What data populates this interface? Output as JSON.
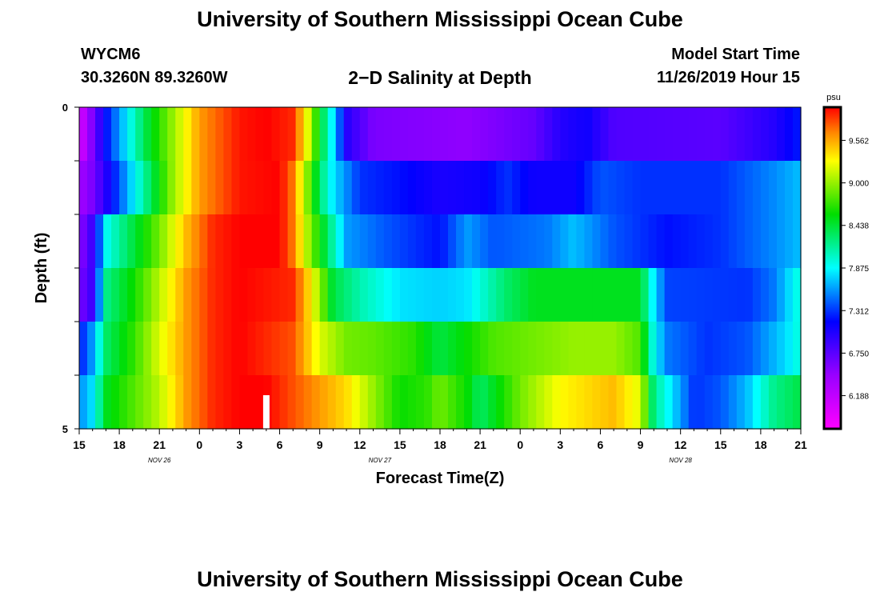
{
  "header": {
    "title": "University of Southern Mississippi Ocean Cube",
    "station": "WYCM6",
    "coords": "30.3260N 89.3260W",
    "chart_title": "2−D Salinity at Depth",
    "start_label": "Model Start Time",
    "start_value": "11/26/2019 Hour 15"
  },
  "footer": {
    "title": "University of Southern Mississippi Ocean Cube"
  },
  "chart_data": {
    "type": "heatmap",
    "title": "2−D Salinity at Depth",
    "xlabel": "Forecast Time(Z)",
    "ylabel": "Depth (ft)",
    "units": "psu",
    "ylim": [
      0,
      5
    ],
    "y_ticks": [
      "0",
      "5"
    ],
    "x_tick_labels": [
      "15",
      "18",
      "21",
      "0",
      "3",
      "6",
      "9",
      "12",
      "15",
      "18",
      "21",
      "0",
      "3",
      "6",
      "9",
      "12",
      "15",
      "18",
      "21"
    ],
    "date_labels": [
      {
        "text": "NOV  26",
        "hour": 6
      },
      {
        "text": "NOV  27",
        "hour": 22.5
      },
      {
        "text": "NOV  28",
        "hour": 45
      }
    ],
    "forecast_hours": 54,
    "now_marker_hour": 14,
    "colorbar": {
      "min": 5.75,
      "max": 10.0,
      "tick_values": [
        6.188,
        6.75,
        7.312,
        7.875,
        8.438,
        9.0,
        9.562
      ],
      "tick_labels": [
        "6.188",
        "6.750",
        "7.312",
        "7.875",
        "8.438",
        "9.000",
        "9.562"
      ]
    },
    "depth_layers": [
      0.5,
      1.5,
      2.5,
      3.5,
      4.5
    ],
    "row_keyframes": [
      [
        [
          0,
          6.0
        ],
        [
          2,
          7.2
        ],
        [
          3,
          7.6
        ],
        [
          5,
          8.4
        ],
        [
          7,
          9.0
        ],
        [
          9,
          9.6
        ],
        [
          12,
          9.95
        ],
        [
          14,
          10.0
        ],
        [
          16,
          9.9
        ],
        [
          17,
          9.3
        ],
        [
          18,
          8.5
        ],
        [
          19,
          7.8
        ],
        [
          20,
          7.0
        ],
        [
          22,
          6.6
        ],
        [
          29,
          6.5
        ],
        [
          34,
          6.7
        ],
        [
          36,
          7.0
        ],
        [
          38,
          7.1
        ],
        [
          40,
          6.8
        ],
        [
          48,
          6.75
        ],
        [
          52,
          7.0
        ],
        [
          54,
          7.25
        ]
      ],
      [
        [
          0,
          6.4
        ],
        [
          1,
          6.6
        ],
        [
          3,
          7.4
        ],
        [
          5,
          8.2
        ],
        [
          7,
          9.0
        ],
        [
          9,
          9.6
        ],
        [
          12,
          9.95
        ],
        [
          15,
          10.0
        ],
        [
          16,
          9.7
        ],
        [
          17,
          9.0
        ],
        [
          18,
          8.3
        ],
        [
          19,
          7.8
        ],
        [
          21,
          7.3
        ],
        [
          24,
          7.2
        ],
        [
          27,
          7.05
        ],
        [
          30,
          7.1
        ],
        [
          32,
          7.3
        ],
        [
          34,
          7.1
        ],
        [
          37,
          7.1
        ],
        [
          39,
          7.4
        ],
        [
          42,
          7.3
        ],
        [
          48,
          7.3
        ],
        [
          52,
          7.55
        ],
        [
          54,
          7.7
        ]
      ],
      [
        [
          0,
          6.5
        ],
        [
          1,
          6.9
        ],
        [
          2,
          7.9
        ],
        [
          4,
          8.4
        ],
        [
          6,
          8.9
        ],
        [
          8,
          9.5
        ],
        [
          10,
          9.9
        ],
        [
          12,
          10.0
        ],
        [
          15,
          10.0
        ],
        [
          16,
          9.7
        ],
        [
          17,
          9.1
        ],
        [
          18,
          8.6
        ],
        [
          19,
          8.1
        ],
        [
          20,
          7.6
        ],
        [
          23,
          7.4
        ],
        [
          27,
          7.2
        ],
        [
          29,
          7.6
        ],
        [
          31,
          7.4
        ],
        [
          35,
          7.5
        ],
        [
          37,
          7.7
        ],
        [
          40,
          7.4
        ],
        [
          44,
          7.2
        ],
        [
          48,
          7.3
        ],
        [
          52,
          7.55
        ],
        [
          54,
          7.7
        ]
      ],
      [
        [
          0,
          6.6
        ],
        [
          1,
          6.9
        ],
        [
          2,
          8.2
        ],
        [
          4,
          8.6
        ],
        [
          6,
          9.1
        ],
        [
          8,
          9.6
        ],
        [
          10,
          9.9
        ],
        [
          12,
          10.0
        ],
        [
          16,
          9.9
        ],
        [
          17,
          9.5
        ],
        [
          18,
          9.0
        ],
        [
          19,
          8.4
        ],
        [
          21,
          8.1
        ],
        [
          24,
          7.8
        ],
        [
          27,
          7.75
        ],
        [
          29,
          7.8
        ],
        [
          32,
          8.3
        ],
        [
          34,
          8.5
        ],
        [
          37,
          8.5
        ],
        [
          42,
          8.5
        ],
        [
          43,
          7.8
        ],
        [
          44,
          7.35
        ],
        [
          50,
          7.3
        ],
        [
          52,
          7.5
        ],
        [
          54,
          8.0
        ]
      ],
      [
        [
          0,
          7.2
        ],
        [
          1,
          7.6
        ],
        [
          2,
          8.3
        ],
        [
          4,
          8.7
        ],
        [
          6,
          9.2
        ],
        [
          8,
          9.6
        ],
        [
          10,
          9.9
        ],
        [
          12,
          10.0
        ],
        [
          16,
          9.8
        ],
        [
          17,
          9.5
        ],
        [
          18,
          9.2
        ],
        [
          20,
          8.9
        ],
        [
          22,
          8.85
        ],
        [
          25,
          8.7
        ],
        [
          27,
          8.4
        ],
        [
          29,
          8.6
        ],
        [
          31,
          8.8
        ],
        [
          34,
          8.9
        ],
        [
          37,
          9.0
        ],
        [
          40,
          9.0
        ],
        [
          42,
          8.8
        ],
        [
          43,
          7.9
        ],
        [
          44,
          7.5
        ],
        [
          47,
          7.3
        ],
        [
          50,
          7.4
        ],
        [
          53,
          7.8
        ],
        [
          54,
          8.0
        ]
      ],
      [
        [
          0,
          7.55
        ],
        [
          1,
          7.8
        ],
        [
          2,
          8.5
        ],
        [
          4,
          8.8
        ],
        [
          6,
          9.1
        ],
        [
          8,
          9.6
        ],
        [
          10,
          9.9
        ],
        [
          12,
          10.0
        ],
        [
          14,
          10.0
        ],
        [
          17,
          9.7
        ],
        [
          20,
          9.4
        ],
        [
          22,
          9.0
        ],
        [
          24,
          8.6
        ],
        [
          26,
          8.7
        ],
        [
          27,
          8.9
        ],
        [
          29,
          8.6
        ],
        [
          30,
          8.3
        ],
        [
          33,
          8.9
        ],
        [
          36,
          9.3
        ],
        [
          40,
          9.5
        ],
        [
          42,
          9.2
        ],
        [
          43,
          8.2
        ],
        [
          44,
          7.9
        ],
        [
          46,
          7.3
        ],
        [
          48,
          7.4
        ],
        [
          50,
          7.7
        ],
        [
          52,
          8.2
        ],
        [
          54,
          8.4
        ]
      ]
    ]
  }
}
